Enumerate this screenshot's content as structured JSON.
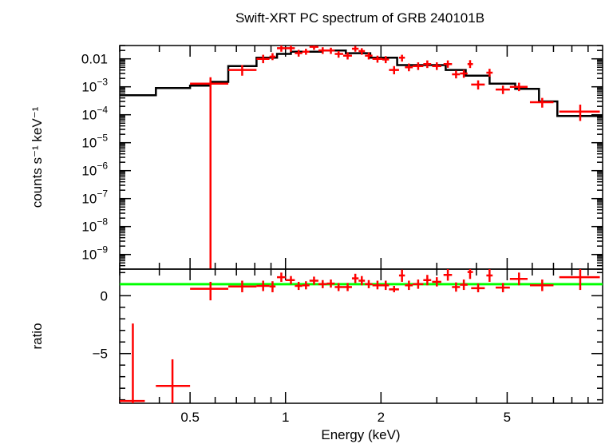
{
  "chart_data": {
    "type": "scatter",
    "title": "Swift-XRT PC spectrum of GRB 240101B",
    "xlabel": "Energy (keV)",
    "xscale": "log",
    "xlim": [
      0.3,
      10
    ],
    "xticks": [
      {
        "v": 0.5,
        "label": "0.5"
      },
      {
        "v": 1,
        "label": "1"
      },
      {
        "v": 2,
        "label": "2"
      },
      {
        "v": 5,
        "label": "5"
      }
    ],
    "colors": {
      "data": "#ff0000",
      "model": "#000000",
      "unity": "#00ff00"
    },
    "panels": [
      {
        "name": "spectrum",
        "ylabel": "counts s⁻¹ keV⁻¹",
        "yscale": "log",
        "ylim": [
          3e-10,
          0.03
        ],
        "yticks": [
          {
            "v": 0.01,
            "label": "0.01"
          },
          {
            "v": 0.001,
            "base": "10",
            "exp": "−3"
          },
          {
            "v": 0.0001,
            "base": "10",
            "exp": "−4"
          },
          {
            "v": 1e-05,
            "base": "10",
            "exp": "−5"
          },
          {
            "v": 1e-06,
            "base": "10",
            "exp": "−6"
          },
          {
            "v": 1e-07,
            "base": "10",
            "exp": "−7"
          },
          {
            "v": 1e-08,
            "base": "10",
            "exp": "−8"
          },
          {
            "v": 1e-09,
            "base": "10",
            "exp": "−9"
          }
        ],
        "model_step": [
          [
            0.3,
            0.0005
          ],
          [
            0.39,
            0.0009
          ],
          [
            0.5,
            0.0011
          ],
          [
            0.58,
            0.0015
          ],
          [
            0.66,
            0.0055
          ],
          [
            0.81,
            0.011
          ],
          [
            0.94,
            0.015
          ],
          [
            1.04,
            0.018
          ],
          [
            1.3,
            0.02
          ],
          [
            1.55,
            0.016
          ],
          [
            1.85,
            0.011
          ],
          [
            2.25,
            0.006
          ],
          [
            3.2,
            0.004
          ],
          [
            3.7,
            0.0025
          ],
          [
            4.4,
            0.0013
          ],
          [
            5.3,
            0.00085
          ],
          [
            6.3,
            0.0003
          ],
          [
            7.2,
            9e-05
          ],
          [
            10,
            9e-05
          ]
        ],
        "points": [
          {
            "x": 0.58,
            "xlo": 0.5,
            "xhi": 0.66,
            "y": 0.0013,
            "ylo": 3e-10,
            "yhi": 0.0022
          },
          {
            "x": 0.73,
            "xlo": 0.66,
            "xhi": 0.81,
            "y": 0.004,
            "ylo": 0.0025,
            "yhi": 0.006
          },
          {
            "x": 0.85,
            "xlo": 0.81,
            "xhi": 0.89,
            "y": 0.01,
            "ylo": 0.007,
            "yhi": 0.014
          },
          {
            "x": 0.91,
            "xlo": 0.89,
            "xhi": 0.93,
            "y": 0.012,
            "ylo": 0.009,
            "yhi": 0.016
          },
          {
            "x": 0.97,
            "xlo": 0.94,
            "xhi": 1.0,
            "y": 0.024,
            "ylo": 0.018,
            "yhi": 0.03
          },
          {
            "x": 1.04,
            "xlo": 1.0,
            "xhi": 1.07,
            "y": 0.024,
            "ylo": 0.018,
            "yhi": 0.03
          },
          {
            "x": 1.1,
            "xlo": 1.07,
            "xhi": 1.13,
            "y": 0.016,
            "ylo": 0.012,
            "yhi": 0.021
          },
          {
            "x": 1.16,
            "xlo": 1.13,
            "xhi": 1.19,
            "y": 0.018,
            "ylo": 0.014,
            "yhi": 0.023
          },
          {
            "x": 1.23,
            "xlo": 1.19,
            "xhi": 1.27,
            "y": 0.027,
            "ylo": 0.021,
            "yhi": 0.033
          },
          {
            "x": 1.31,
            "xlo": 1.27,
            "xhi": 1.35,
            "y": 0.02,
            "ylo": 0.015,
            "yhi": 0.026
          },
          {
            "x": 1.39,
            "xlo": 1.35,
            "xhi": 1.43,
            "y": 0.02,
            "ylo": 0.015,
            "yhi": 0.025
          },
          {
            "x": 1.47,
            "xlo": 1.43,
            "xhi": 1.52,
            "y": 0.015,
            "ylo": 0.011,
            "yhi": 0.019
          },
          {
            "x": 1.57,
            "xlo": 1.52,
            "xhi": 1.62,
            "y": 0.013,
            "ylo": 0.0095,
            "yhi": 0.017
          },
          {
            "x": 1.66,
            "xlo": 1.62,
            "xhi": 1.7,
            "y": 0.023,
            "ylo": 0.018,
            "yhi": 0.029
          },
          {
            "x": 1.74,
            "xlo": 1.7,
            "xhi": 1.78,
            "y": 0.019,
            "ylo": 0.014,
            "yhi": 0.024
          },
          {
            "x": 1.83,
            "xlo": 1.78,
            "xhi": 1.88,
            "y": 0.013,
            "ylo": 0.0095,
            "yhi": 0.017
          },
          {
            "x": 1.95,
            "xlo": 1.88,
            "xhi": 2.02,
            "y": 0.01,
            "ylo": 0.0073,
            "yhi": 0.013
          },
          {
            "x": 2.07,
            "xlo": 2.02,
            "xhi": 2.12,
            "y": 0.0095,
            "ylo": 0.007,
            "yhi": 0.0125
          },
          {
            "x": 2.2,
            "xlo": 2.12,
            "xhi": 2.28,
            "y": 0.004,
            "ylo": 0.0028,
            "yhi": 0.0055
          },
          {
            "x": 2.33,
            "xlo": 2.28,
            "xhi": 2.38,
            "y": 0.011,
            "ylo": 0.008,
            "yhi": 0.014
          },
          {
            "x": 2.45,
            "xlo": 2.38,
            "xhi": 2.52,
            "y": 0.005,
            "ylo": 0.0036,
            "yhi": 0.0068
          },
          {
            "x": 2.62,
            "xlo": 2.52,
            "xhi": 2.72,
            "y": 0.0055,
            "ylo": 0.004,
            "yhi": 0.0075
          },
          {
            "x": 2.8,
            "xlo": 2.72,
            "xhi": 2.88,
            "y": 0.0065,
            "ylo": 0.0047,
            "yhi": 0.0088
          },
          {
            "x": 3.0,
            "xlo": 2.9,
            "xhi": 3.1,
            "y": 0.0055,
            "ylo": 0.004,
            "yhi": 0.0075
          },
          {
            "x": 3.25,
            "xlo": 3.15,
            "xhi": 3.35,
            "y": 0.0065,
            "ylo": 0.0048,
            "yhi": 0.0088
          },
          {
            "x": 3.45,
            "xlo": 3.35,
            "xhi": 3.55,
            "y": 0.0028,
            "ylo": 0.002,
            "yhi": 0.0038
          },
          {
            "x": 3.65,
            "xlo": 3.55,
            "xhi": 3.75,
            "y": 0.003,
            "ylo": 0.0021,
            "yhi": 0.004
          },
          {
            "x": 3.82,
            "xlo": 3.75,
            "xhi": 3.9,
            "y": 0.0065,
            "ylo": 0.0047,
            "yhi": 0.009
          },
          {
            "x": 4.05,
            "xlo": 3.85,
            "xhi": 4.25,
            "y": 0.0012,
            "ylo": 0.0008,
            "yhi": 0.0017
          },
          {
            "x": 4.4,
            "xlo": 4.3,
            "xhi": 4.5,
            "y": 0.0032,
            "ylo": 0.0023,
            "yhi": 0.0044
          },
          {
            "x": 4.85,
            "xlo": 4.6,
            "xhi": 5.1,
            "y": 0.0008,
            "ylo": 0.00055,
            "yhi": 0.0011
          },
          {
            "x": 5.45,
            "xlo": 5.1,
            "xhi": 5.8,
            "y": 0.001,
            "ylo": 0.0007,
            "yhi": 0.0014
          },
          {
            "x": 6.45,
            "xlo": 5.9,
            "xhi": 7.0,
            "y": 0.00028,
            "ylo": 0.00018,
            "yhi": 0.0004
          },
          {
            "x": 8.5,
            "xlo": 7.3,
            "xhi": 9.8,
            "y": 0.00013,
            "ylo": 6e-05,
            "yhi": 0.00023
          }
        ]
      },
      {
        "name": "ratio",
        "ylabel": "ratio",
        "yscale": "linear",
        "ylim": [
          -9.3,
          2.3
        ],
        "yticks": [
          {
            "v": 0,
            "label": "0"
          },
          {
            "v": -5,
            "label": "−5"
          }
        ],
        "unity_line": 1,
        "points": [
          {
            "x": 0.33,
            "xlo": 0.3,
            "xhi": 0.36,
            "y": -9.1,
            "ylo": -9.3,
            "yhi": -2.4
          },
          {
            "x": 0.44,
            "xlo": 0.39,
            "xhi": 0.5,
            "y": -7.8,
            "ylo": -9.3,
            "yhi": -5.5
          },
          {
            "x": 0.58,
            "xlo": 0.5,
            "xhi": 0.66,
            "y": 0.6,
            "ylo": -0.4,
            "yhi": 1.2
          },
          {
            "x": 0.73,
            "xlo": 0.66,
            "xhi": 0.81,
            "y": 0.8,
            "ylo": 0.3,
            "yhi": 1.3
          },
          {
            "x": 0.85,
            "xlo": 0.81,
            "xhi": 0.89,
            "y": 0.85,
            "ylo": 0.4,
            "yhi": 1.3
          },
          {
            "x": 0.91,
            "xlo": 0.89,
            "xhi": 0.93,
            "y": 0.8,
            "ylo": 0.3,
            "yhi": 1.25
          },
          {
            "x": 0.97,
            "xlo": 0.94,
            "xhi": 1.0,
            "y": 1.6,
            "ylo": 1.2,
            "yhi": 2.0
          },
          {
            "x": 1.04,
            "xlo": 1.0,
            "xhi": 1.07,
            "y": 1.35,
            "ylo": 1.0,
            "yhi": 1.7
          },
          {
            "x": 1.1,
            "xlo": 1.07,
            "xhi": 1.13,
            "y": 0.85,
            "ylo": 0.5,
            "yhi": 1.2
          },
          {
            "x": 1.16,
            "xlo": 1.13,
            "xhi": 1.19,
            "y": 0.9,
            "ylo": 0.55,
            "yhi": 1.25
          },
          {
            "x": 1.23,
            "xlo": 1.19,
            "xhi": 1.27,
            "y": 1.3,
            "ylo": 0.95,
            "yhi": 1.65
          },
          {
            "x": 1.31,
            "xlo": 1.27,
            "xhi": 1.35,
            "y": 1.0,
            "ylo": 0.65,
            "yhi": 1.35
          },
          {
            "x": 1.39,
            "xlo": 1.35,
            "xhi": 1.43,
            "y": 1.05,
            "ylo": 0.7,
            "yhi": 1.4
          },
          {
            "x": 1.47,
            "xlo": 1.43,
            "xhi": 1.52,
            "y": 0.75,
            "ylo": 0.4,
            "yhi": 1.1
          },
          {
            "x": 1.57,
            "xlo": 1.52,
            "xhi": 1.62,
            "y": 0.75,
            "ylo": 0.4,
            "yhi": 1.1
          },
          {
            "x": 1.66,
            "xlo": 1.62,
            "xhi": 1.7,
            "y": 1.5,
            "ylo": 1.1,
            "yhi": 1.9
          },
          {
            "x": 1.74,
            "xlo": 1.7,
            "xhi": 1.78,
            "y": 1.3,
            "ylo": 0.9,
            "yhi": 1.7
          },
          {
            "x": 1.83,
            "xlo": 1.78,
            "xhi": 1.88,
            "y": 1.0,
            "ylo": 0.65,
            "yhi": 1.35
          },
          {
            "x": 1.95,
            "xlo": 1.88,
            "xhi": 2.02,
            "y": 0.9,
            "ylo": 0.55,
            "yhi": 1.3
          },
          {
            "x": 2.07,
            "xlo": 2.02,
            "xhi": 2.12,
            "y": 0.9,
            "ylo": 0.5,
            "yhi": 1.3
          },
          {
            "x": 2.2,
            "xlo": 2.12,
            "xhi": 2.28,
            "y": 0.55,
            "ylo": 0.3,
            "yhi": 0.85
          },
          {
            "x": 2.33,
            "xlo": 2.28,
            "xhi": 2.38,
            "y": 1.75,
            "ylo": 1.2,
            "yhi": 2.25
          },
          {
            "x": 2.45,
            "xlo": 2.38,
            "xhi": 2.52,
            "y": 0.9,
            "ylo": 0.5,
            "yhi": 1.3
          },
          {
            "x": 2.62,
            "xlo": 2.52,
            "xhi": 2.72,
            "y": 1.0,
            "ylo": 0.6,
            "yhi": 1.4
          },
          {
            "x": 2.8,
            "xlo": 2.72,
            "xhi": 2.88,
            "y": 1.35,
            "ylo": 0.9,
            "yhi": 1.8
          },
          {
            "x": 3.0,
            "xlo": 2.9,
            "xhi": 3.1,
            "y": 1.2,
            "ylo": 0.8,
            "yhi": 1.6
          },
          {
            "x": 3.25,
            "xlo": 3.15,
            "xhi": 3.35,
            "y": 1.8,
            "ylo": 1.3,
            "yhi": 2.3
          },
          {
            "x": 3.45,
            "xlo": 3.35,
            "xhi": 3.55,
            "y": 0.75,
            "ylo": 0.35,
            "yhi": 1.15
          },
          {
            "x": 3.65,
            "xlo": 3.55,
            "xhi": 3.75,
            "y": 0.95,
            "ylo": 0.5,
            "yhi": 1.4
          },
          {
            "x": 3.82,
            "xlo": 3.75,
            "xhi": 3.9,
            "y": 2.05,
            "ylo": 1.45,
            "yhi": 2.3
          },
          {
            "x": 4.05,
            "xlo": 3.85,
            "xhi": 4.25,
            "y": 0.65,
            "ylo": 0.3,
            "yhi": 1.05
          },
          {
            "x": 4.4,
            "xlo": 4.3,
            "xhi": 4.5,
            "y": 1.75,
            "ylo": 1.2,
            "yhi": 2.3
          },
          {
            "x": 4.85,
            "xlo": 4.6,
            "xhi": 5.1,
            "y": 0.7,
            "ylo": 0.3,
            "yhi": 1.1
          },
          {
            "x": 5.45,
            "xlo": 5.1,
            "xhi": 5.8,
            "y": 1.45,
            "ylo": 0.9,
            "yhi": 2.0
          },
          {
            "x": 6.45,
            "xlo": 5.9,
            "xhi": 7.0,
            "y": 0.9,
            "ylo": 0.4,
            "yhi": 1.4
          },
          {
            "x": 8.5,
            "xlo": 7.3,
            "xhi": 9.8,
            "y": 1.6,
            "ylo": 0.5,
            "yhi": 2.3
          }
        ]
      }
    ]
  }
}
